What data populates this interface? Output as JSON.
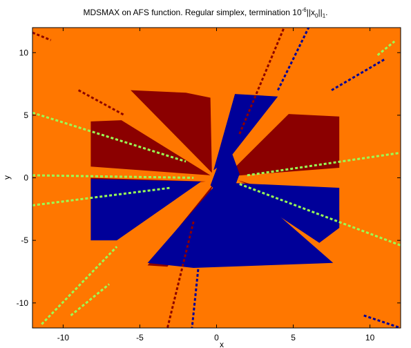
{
  "chart_data": {
    "type": "heatmap",
    "title_parts": {
      "main": "MDSMAX on AFS function. Regular simplex, termination 10",
      "exp": "-6",
      "norm_open": "||x",
      "norm_sub": "0",
      "norm_close": "||",
      "tail_sub": "1",
      "end": "."
    },
    "xlabel": "x",
    "ylabel": "y",
    "xlim": [
      -12,
      12
    ],
    "ylim": [
      -12,
      12
    ],
    "xticks": [
      -10,
      -5,
      0,
      5,
      10
    ],
    "yticks": [
      -10,
      -5,
      0,
      5,
      10
    ],
    "colors": {
      "background": "#ff7700",
      "dark_red": "#8b0000",
      "dark_blue": "#000099",
      "light_green": "#99ff55"
    },
    "regions": [
      {
        "name": "dark-red-wedge-left",
        "color": "dark_red",
        "points": [
          [
            -0.4,
            0.2
          ],
          [
            -6.2,
            4.6
          ],
          [
            -8.2,
            4.5
          ],
          [
            -8.2,
            0.9
          ]
        ]
      },
      {
        "name": "dark-red-wedge-top",
        "color": "dark_red",
        "points": [
          [
            -0.3,
            0.4
          ],
          [
            -5.6,
            7.0
          ],
          [
            -2.0,
            6.8
          ],
          [
            -0.4,
            6.4
          ]
        ]
      },
      {
        "name": "dark-red-wedge-topright",
        "color": "dark_red",
        "points": [
          [
            0.6,
            0.1
          ],
          [
            4.7,
            5.1
          ],
          [
            8.0,
            4.9
          ],
          [
            8.0,
            0.8
          ]
        ]
      },
      {
        "name": "dark-red-wedge-right",
        "color": "dark_red",
        "points": [
          [
            1.4,
            -0.2
          ],
          [
            8.0,
            -2.6
          ],
          [
            8.0,
            -3.8
          ]
        ]
      },
      {
        "name": "dark-red-wedge-left-low",
        "color": "dark_red",
        "points": [
          [
            -0.7,
            -0.3
          ],
          [
            -8.2,
            0.0
          ],
          [
            -8.2,
            -1.2
          ]
        ]
      },
      {
        "name": "dark-red-wedge-bottom",
        "color": "dark_red",
        "points": [
          [
            -0.2,
            -0.5
          ],
          [
            -4.5,
            -7.0
          ],
          [
            -3.2,
            -7.1
          ],
          [
            -1.2,
            -3.5
          ]
        ]
      },
      {
        "name": "dark-blue-wedge-left",
        "color": "dark_blue",
        "points": [
          [
            -1.0,
            -0.3
          ],
          [
            -8.2,
            -0.1
          ],
          [
            -8.2,
            -5.0
          ],
          [
            -6.5,
            -5.0
          ]
        ]
      },
      {
        "name": "dark-blue-wedge-upper",
        "color": "dark_blue",
        "points": [
          [
            -0.2,
            0.6
          ],
          [
            1.2,
            6.7
          ],
          [
            4.0,
            6.5
          ],
          [
            0.8,
            1.5
          ]
        ]
      },
      {
        "name": "dark-blue-wedge-right",
        "color": "dark_blue",
        "points": [
          [
            0.8,
            -0.4
          ],
          [
            8.0,
            -0.8
          ],
          [
            8.0,
            -4.0
          ],
          [
            6.7,
            -5.2
          ]
        ]
      },
      {
        "name": "dark-blue-wedge-bottom",
        "color": "dark_blue",
        "points": [
          [
            0.2,
            -0.2
          ],
          [
            -4.5,
            -6.8
          ],
          [
            -1.5,
            -7.2
          ],
          [
            7.6,
            -6.8
          ],
          [
            2.0,
            -0.8
          ]
        ]
      },
      {
        "name": "dark-blue-wedge-center",
        "color": "dark_blue",
        "points": [
          [
            -0.4,
            -0.6
          ],
          [
            0.7,
            3.0
          ],
          [
            1.5,
            0.3
          ],
          [
            0.8,
            -2.0
          ]
        ]
      }
    ],
    "lines": [
      {
        "name": "green-line-upper-left",
        "color": "light_green",
        "from": [
          -12.0,
          5.2
        ],
        "to": [
          -2.0,
          1.3
        ]
      },
      {
        "name": "green-line-left",
        "color": "light_green",
        "from": [
          -12.0,
          0.2
        ],
        "to": [
          -1.5,
          0.0
        ]
      },
      {
        "name": "green-line-lower-left",
        "color": "light_green",
        "from": [
          -12.0,
          -2.2
        ],
        "to": [
          -3.0,
          -0.8
        ]
      },
      {
        "name": "green-line-right",
        "color": "light_green",
        "from": [
          2.0,
          0.2
        ],
        "to": [
          12.0,
          2.0
        ]
      },
      {
        "name": "green-line-lower-right",
        "color": "light_green",
        "from": [
          1.5,
          -0.5
        ],
        "to": [
          12.0,
          -5.4
        ]
      },
      {
        "name": "green-line-top-right",
        "color": "light_green",
        "from": [
          10.5,
          9.8
        ],
        "to": [
          11.6,
          10.9
        ]
      },
      {
        "name": "green-line-diag-lower",
        "color": "light_green",
        "from": [
          -11.4,
          -11.7
        ],
        "to": [
          -6.5,
          -5.5
        ]
      },
      {
        "name": "blue-dots-right",
        "color": "dark_blue",
        "from": [
          7.5,
          7.0
        ],
        "to": [
          11.0,
          9.5
        ]
      },
      {
        "name": "red-dots-upper-left",
        "color": "dark_red",
        "from": [
          -9.0,
          7.0
        ],
        "to": [
          -6.0,
          5.0
        ]
      },
      {
        "name": "red-ray-top",
        "color": "dark_red",
        "from": [
          1.5,
          3.5
        ],
        "to": [
          4.4,
          12.0
        ]
      },
      {
        "name": "red-ray-bottom",
        "color": "dark_red",
        "from": [
          -1.5,
          -3.5
        ],
        "to": [
          -3.2,
          -12.0
        ]
      },
      {
        "name": "blue-ray-top",
        "color": "dark_blue",
        "from": [
          4.0,
          7.0
        ],
        "to": [
          6.0,
          12.0
        ]
      },
      {
        "name": "blue-ray-bottom",
        "color": "dark_blue",
        "from": [
          -1.0,
          -5.0
        ],
        "to": [
          -1.6,
          -12.0
        ]
      },
      {
        "name": "red-corner-top-left",
        "color": "dark_red",
        "from": [
          -12.0,
          11.6
        ],
        "to": [
          -10.8,
          11.0
        ]
      },
      {
        "name": "blue-corner-bottom-right",
        "color": "dark_blue",
        "from": [
          9.6,
          -11.0
        ],
        "to": [
          12.0,
          -12.0
        ]
      },
      {
        "name": "green-dots-bottom",
        "color": "light_green",
        "from": [
          -9.5,
          -11.0
        ],
        "to": [
          -7.0,
          -8.5
        ]
      }
    ]
  }
}
